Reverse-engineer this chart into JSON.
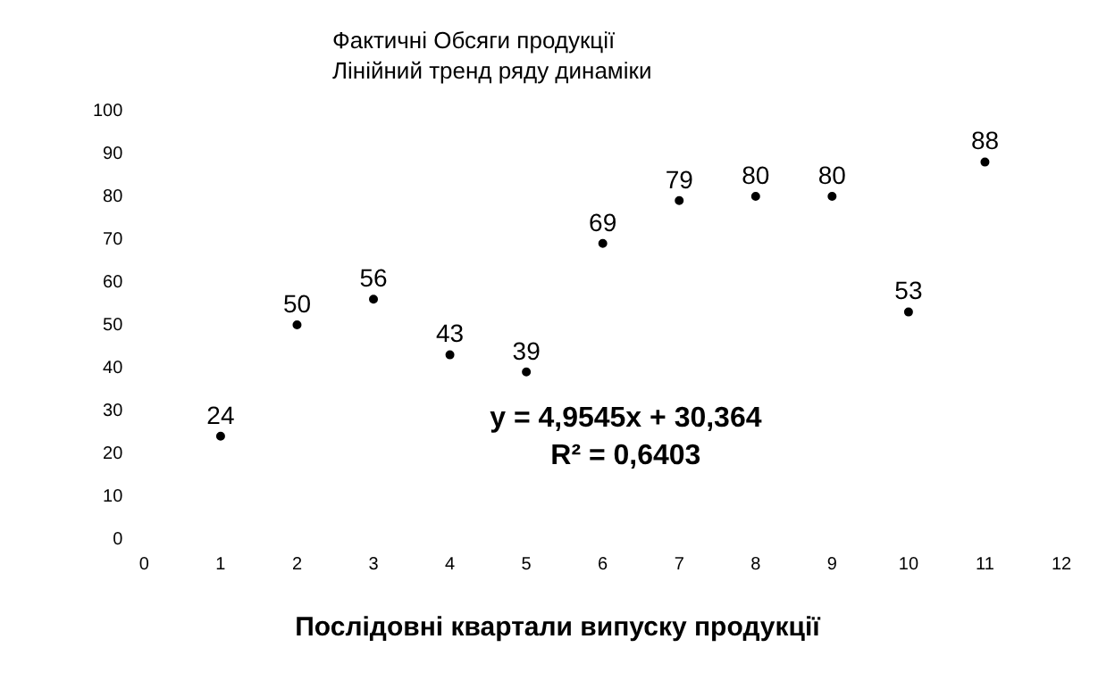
{
  "chart_data": {
    "type": "scatter",
    "title": "Фактичні Обсяги продукції\nЛінійний тренд ряду динаміки",
    "xlabel": "Послідовні квартали випуску продукції",
    "x": [
      1,
      2,
      3,
      4,
      5,
      6,
      7,
      8,
      9,
      10,
      11
    ],
    "series": [
      {
        "color": "#000000",
        "values": [
          24,
          50,
          56,
          43,
          39,
          69,
          79,
          80,
          80,
          53,
          88
        ]
      }
    ],
    "data_labels": true,
    "marker": "circle",
    "grid": false,
    "legend": false,
    "xlim": [
      0,
      12
    ],
    "xticks": [
      0,
      1,
      2,
      3,
      4,
      5,
      6,
      7,
      8,
      9,
      10,
      11,
      12
    ],
    "ylim": [
      0,
      100
    ],
    "yticks": [
      0,
      10,
      20,
      30,
      40,
      50,
      60,
      70,
      80,
      90,
      100
    ],
    "annotations": [
      "y = 4,9545x + 30,364",
      "R² = 0,6403"
    ]
  }
}
